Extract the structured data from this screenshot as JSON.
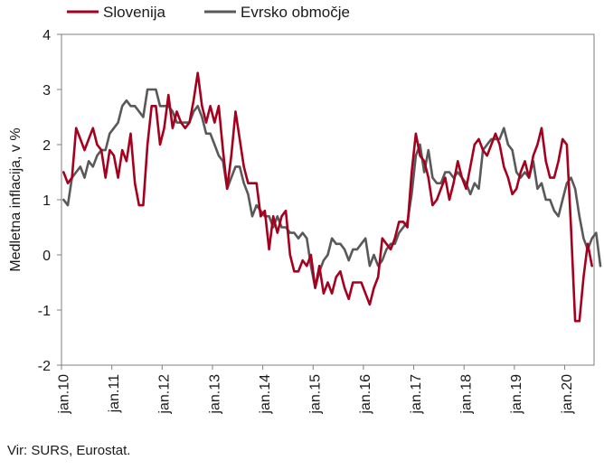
{
  "chart_data": {
    "type": "line",
    "title": "",
    "ylabel": "Medletna inflacija, v %",
    "xlabel": "",
    "ylim": [
      -2,
      4
    ],
    "yticks": [
      4,
      3,
      2,
      1,
      0,
      -1,
      -2
    ],
    "grid": false,
    "legend_position": "top-left",
    "x_ticks": [
      "jan.10",
      "jan.11",
      "jan.12",
      "jan.13",
      "jan.14",
      "jan.15",
      "jan.16",
      "jan.17",
      "jan.18",
      "jan.19",
      "jan.20"
    ],
    "x_start": "2010-01",
    "series": [
      {
        "name": "Slovenija",
        "color": "#a6001f",
        "values": [
          1.5,
          1.3,
          1.4,
          2.3,
          2.1,
          1.9,
          2.1,
          2.3,
          2.0,
          1.9,
          1.4,
          1.9,
          1.8,
          1.4,
          1.9,
          1.7,
          2.2,
          1.3,
          0.9,
          0.9,
          2.0,
          2.7,
          2.7,
          2.0,
          2.3,
          2.9,
          2.3,
          2.6,
          2.4,
          2.3,
          2.4,
          2.8,
          3.3,
          2.7,
          2.4,
          2.7,
          2.4,
          2.7,
          1.9,
          1.2,
          1.8,
          2.6,
          2.1,
          1.6,
          1.3,
          1.3,
          1.3,
          0.7,
          0.8,
          0.1,
          0.7,
          0.4,
          0.7,
          0.8,
          0.0,
          -0.3,
          -0.3,
          -0.1,
          -0.2,
          0.0,
          -0.6,
          -0.2,
          -0.7,
          -0.5,
          -0.7,
          -0.4,
          -0.3,
          -0.6,
          -0.8,
          -0.5,
          -0.5,
          -0.5,
          -0.7,
          -0.9,
          -0.6,
          -0.4,
          0.3,
          0.2,
          0.1,
          0.3,
          0.6,
          0.6,
          0.5,
          1.5,
          2.2,
          1.8,
          1.7,
          1.4,
          0.9,
          1.0,
          1.2,
          1.4,
          1.0,
          1.3,
          1.7,
          1.4,
          1.2,
          1.6,
          2.0,
          2.1,
          1.9,
          1.8,
          2.0,
          2.2,
          2.0,
          1.6,
          1.4,
          1.1,
          1.2,
          1.5,
          1.7,
          1.4,
          1.8,
          2.0,
          2.3,
          1.7,
          1.4,
          1.4,
          1.7,
          2.1,
          2.0,
          0.5,
          -1.2,
          -1.2,
          -0.4,
          0.2,
          -0.2
        ],
        "markers": false
      },
      {
        "name": "Evrsko območje",
        "color": "#595959",
        "values": [
          1.0,
          0.9,
          1.4,
          1.5,
          1.6,
          1.4,
          1.7,
          1.6,
          1.8,
          1.9,
          1.9,
          2.2,
          2.3,
          2.4,
          2.7,
          2.8,
          2.7,
          2.7,
          2.6,
          2.5,
          3.0,
          3.0,
          3.0,
          2.7,
          2.7,
          2.7,
          2.6,
          2.4,
          2.4,
          2.4,
          2.4,
          2.6,
          2.7,
          2.5,
          2.2,
          2.2,
          2.0,
          1.8,
          1.7,
          1.2,
          1.4,
          1.6,
          1.6,
          1.3,
          1.1,
          0.7,
          0.9,
          0.8,
          0.7,
          0.7,
          0.5,
          0.7,
          0.5,
          0.5,
          0.4,
          0.4,
          0.3,
          0.4,
          0.3,
          -0.2,
          -0.6,
          -0.3,
          -0.1,
          0.0,
          0.3,
          0.2,
          0.2,
          0.1,
          -0.1,
          0.1,
          0.1,
          0.2,
          0.3,
          -0.2,
          0.0,
          -0.2,
          -0.1,
          0.1,
          0.2,
          0.2,
          0.4,
          0.5,
          0.6,
          1.1,
          1.8,
          2.0,
          1.5,
          1.9,
          1.4,
          1.3,
          1.3,
          1.5,
          1.5,
          1.4,
          1.5,
          1.4,
          1.3,
          1.1,
          1.3,
          1.2,
          1.9,
          2.0,
          2.1,
          2.1,
          2.1,
          2.3,
          2.0,
          1.9,
          1.5,
          1.4,
          1.5,
          1.4,
          1.7,
          1.2,
          1.3,
          1.0,
          1.0,
          0.8,
          0.7,
          1.0,
          1.3,
          1.4,
          1.2,
          0.7,
          0.3,
          0.1,
          0.3,
          0.4,
          -0.2
        ],
        "markers": false
      }
    ],
    "source_note": "Vir: SURS, Eurostat."
  }
}
